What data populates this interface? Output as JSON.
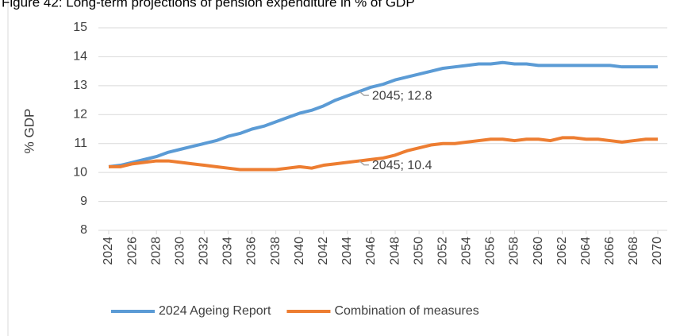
{
  "chart_data": {
    "type": "line",
    "title": "Figure 42: Long-term projections of pension expenditure in % of GDP",
    "y_label": "% GDP",
    "x": [
      2024,
      2025,
      2026,
      2027,
      2028,
      2029,
      2030,
      2031,
      2032,
      2033,
      2034,
      2035,
      2036,
      2037,
      2038,
      2039,
      2040,
      2041,
      2042,
      2043,
      2044,
      2045,
      2046,
      2047,
      2048,
      2049,
      2050,
      2051,
      2052,
      2053,
      2054,
      2055,
      2056,
      2057,
      2058,
      2059,
      2060,
      2061,
      2062,
      2063,
      2064,
      2065,
      2066,
      2067,
      2068,
      2069,
      2070
    ],
    "series": [
      {
        "name": "2024 Ageing Report",
        "color": "#5b9bd5",
        "values": [
          10.2,
          10.25,
          10.35,
          10.45,
          10.55,
          10.7,
          10.8,
          10.9,
          11.0,
          11.1,
          11.25,
          11.35,
          11.5,
          11.6,
          11.75,
          11.9,
          12.05,
          12.15,
          12.3,
          12.5,
          12.65,
          12.8,
          12.95,
          13.05,
          13.2,
          13.3,
          13.4,
          13.5,
          13.6,
          13.65,
          13.7,
          13.75,
          13.75,
          13.8,
          13.75,
          13.75,
          13.7,
          13.7,
          13.7,
          13.7,
          13.7,
          13.7,
          13.7,
          13.65,
          13.65,
          13.65,
          13.65
        ]
      },
      {
        "name": "Combination of measures",
        "color": "#ed7d31",
        "values": [
          10.2,
          10.2,
          10.3,
          10.35,
          10.4,
          10.4,
          10.35,
          10.3,
          10.25,
          10.2,
          10.15,
          10.1,
          10.1,
          10.1,
          10.1,
          10.15,
          10.2,
          10.15,
          10.25,
          10.3,
          10.35,
          10.4,
          10.45,
          10.5,
          10.6,
          10.75,
          10.85,
          10.95,
          11.0,
          11.0,
          11.05,
          11.1,
          11.15,
          11.15,
          11.1,
          11.15,
          11.15,
          11.1,
          11.2,
          11.2,
          11.15,
          11.15,
          11.1,
          11.05,
          11.1,
          11.15,
          11.15
        ]
      }
    ],
    "annotations": [
      {
        "text": "2045;  12.8",
        "x": 2045,
        "y": 12.8
      },
      {
        "text": "2045;  10.4",
        "x": 2045,
        "y": 10.4
      }
    ],
    "xlim": [
      2024,
      2070
    ],
    "xticks": [
      2024,
      2026,
      2028,
      2030,
      2032,
      2034,
      2036,
      2038,
      2040,
      2042,
      2044,
      2046,
      2048,
      2050,
      2052,
      2054,
      2056,
      2058,
      2060,
      2062,
      2064,
      2066,
      2068,
      2070
    ],
    "ylim": [
      8,
      15
    ],
    "yticks": [
      8,
      9,
      10,
      11,
      12,
      13,
      14,
      15
    ],
    "grid": true,
    "legend": "bottom"
  }
}
